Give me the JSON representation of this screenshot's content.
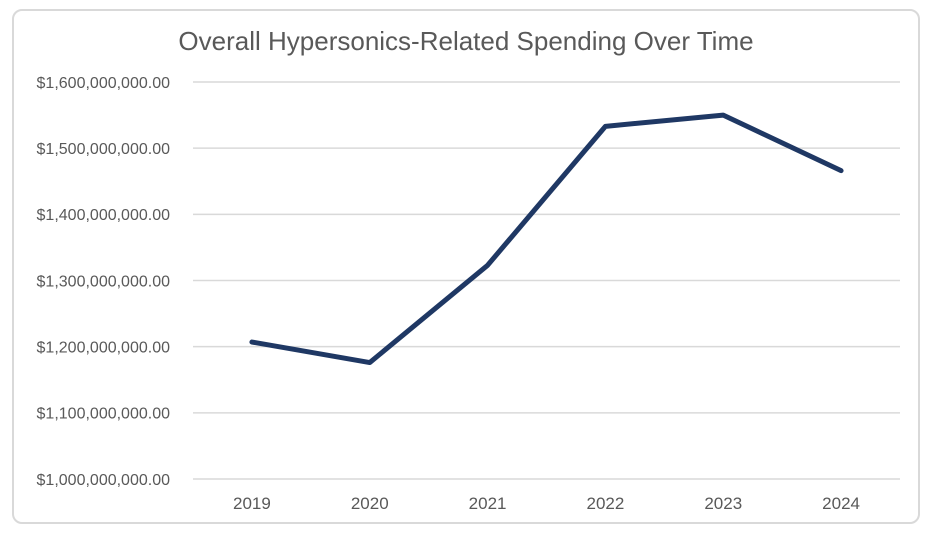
{
  "chart_data": {
    "type": "line",
    "title": "Overall Hypersonics-Related Spending Over Time",
    "categories": [
      "2019",
      "2020",
      "2021",
      "2022",
      "2023",
      "2024"
    ],
    "values": [
      1207000000,
      1176000000,
      1323000000,
      1533000000,
      1550000000,
      1466000000
    ],
    "xlabel": "",
    "ylabel": "",
    "ylim": [
      1000000000,
      1600000000
    ],
    "y_ticks": [
      {
        "value": 1600000000,
        "label": "$1,600,000,000.00"
      },
      {
        "value": 1500000000,
        "label": "$1,500,000,000.00"
      },
      {
        "value": 1400000000,
        "label": "$1,400,000,000.00"
      },
      {
        "value": 1300000000,
        "label": "$1,300,000,000.00"
      },
      {
        "value": 1200000000,
        "label": "$1,200,000,000.00"
      },
      {
        "value": 1100000000,
        "label": "$1,100,000,000.00"
      },
      {
        "value": 1000000000,
        "label": "$1,000,000,000.00"
      }
    ],
    "grid": "horizontal-only",
    "legend": "none",
    "markers": "none",
    "colors": {
      "line": "#1f3864",
      "gridline": "#d9d9d9",
      "text": "#595959",
      "frame_border": "#d9d9d9",
      "background": "#ffffff"
    }
  }
}
